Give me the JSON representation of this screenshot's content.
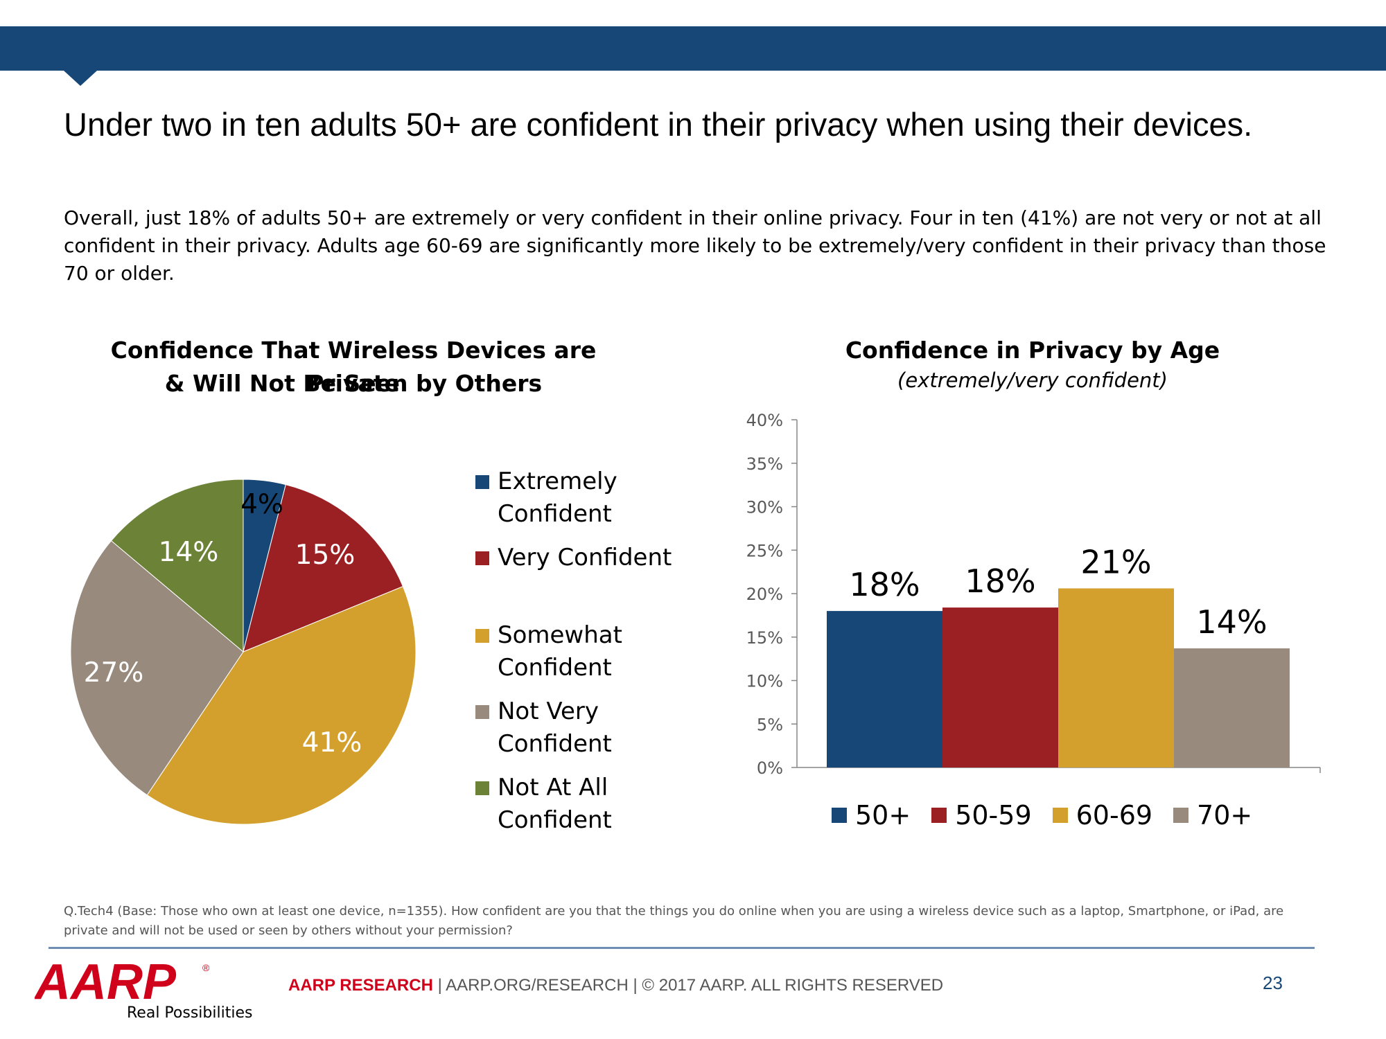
{
  "headline": "Under two in ten adults 50+ are confident in their privacy when using their devices.",
  "subtext": "Overall, just 18% of adults 50+ are extremely or very confident in their online privacy. Four in ten (41%) are not very or not at all confident in their privacy. Adults age 60-69 are significantly more likely to be extremely/very confident in their privacy than those 70 or older.",
  "colors": {
    "navy": "#164777",
    "red": "#9b2024",
    "gold": "#d3a02d",
    "taupe": "#998a7e",
    "green": "#6b8237",
    "aarp_red": "#d0021b"
  },
  "chart_data": [
    {
      "type": "pie",
      "title_line1": "Confidence That Wireless Devices are Private",
      "title_line2": "& Will Not Be Seen by Others",
      "slices": [
        {
          "label": "Extremely Confident",
          "legend_line1": "Extremely",
          "legend_line2": "Confident",
          "value": 4,
          "display": "4%",
          "color": "#164777"
        },
        {
          "label": "Very Confident",
          "legend_line1": "Very Confident",
          "legend_line2": "",
          "value": 15,
          "display": "15%",
          "color": "#9b2024"
        },
        {
          "label": "Somewhat Confident",
          "legend_line1": "Somewhat",
          "legend_line2": "Confident",
          "value": 41,
          "display": "41%",
          "color": "#d3a02d"
        },
        {
          "label": "Not Very Confident",
          "legend_line1": "Not Very",
          "legend_line2": "Confident",
          "value": 27,
          "display": "27%",
          "color": "#998a7e"
        },
        {
          "label": "Not At All Confident",
          "legend_line1": "Not At All",
          "legend_line2": "Confident",
          "value": 14,
          "display": "14%",
          "color": "#6b8237"
        }
      ]
    },
    {
      "type": "bar",
      "title": "Confidence in Privacy by Age",
      "subtitle": "(extremely/very confident)",
      "categories": [
        "50+",
        "50-59",
        "60-69",
        "70+"
      ],
      "values": [
        18,
        18.4,
        20.6,
        13.7
      ],
      "labels": [
        "18%",
        "18%",
        "21%",
        "14%"
      ],
      "colors": [
        "#164777",
        "#9b2024",
        "#d3a02d",
        "#998a7e"
      ],
      "ylim": [
        0,
        40
      ],
      "yticks": [
        "0%",
        "5%",
        "10%",
        "15%",
        "20%",
        "25%",
        "30%",
        "35%",
        "40%"
      ],
      "grid": false,
      "legend": "bottom"
    }
  ],
  "footnote": "Q.Tech4 (Base: Those who own at least one device, n=1355). How confident are you that the things you do online when you are using a wireless device such as a laptop, Smartphone, or iPad, are private and will not be used or seen by others without your permission?",
  "footer": {
    "logo_text": "AARP",
    "tagline": "Real Possibilities",
    "brand": "AARP RESEARCH",
    "rest": " | AARP.ORG/RESEARCH | © 2017 AARP. ALL RIGHTS RESERVED",
    "page": "23"
  }
}
